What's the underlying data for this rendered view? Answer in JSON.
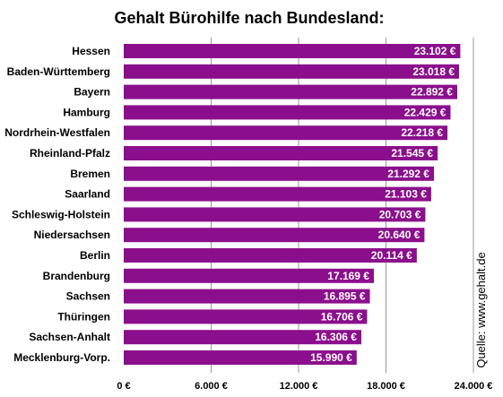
{
  "chart_data": {
    "type": "bar",
    "orientation": "horizontal",
    "title": "Gehalt Bürohilfe nach Bundesland:",
    "categories": [
      "Hessen",
      "Baden-Württemberg",
      "Bayern",
      "Hamburg",
      "Nordrhein-Westfalen",
      "Rheinland-Pfalz",
      "Bremen",
      "Saarland",
      "Schleswig-Holstein",
      "Niedersachsen",
      "Berlin",
      "Brandenburg",
      "Sachsen",
      "Thüringen",
      "Sachsen-Anhalt",
      "Mecklenburg-Vorp."
    ],
    "values": [
      23102,
      23018,
      22892,
      22429,
      22218,
      21545,
      21292,
      21103,
      20703,
      20640,
      20114,
      17169,
      16895,
      16706,
      16306,
      15990
    ],
    "value_labels": [
      "23.102 €",
      "23.018 €",
      "22.892 €",
      "22.429 €",
      "22.218 €",
      "21.545 €",
      "21.292 €",
      "21.103 €",
      "20.703 €",
      "20.640 €",
      "20.114 €",
      "17.169 €",
      "16.895 €",
      "16.706 €",
      "16.306 €",
      "15.990 €"
    ],
    "xlim": [
      0,
      24000
    ],
    "x_ticks": [
      0,
      6000,
      12000,
      18000,
      24000
    ],
    "x_tick_labels": [
      "0 €",
      "6.000 €",
      "12.000 €",
      "18.000 €",
      "24.000 €"
    ],
    "grid": true,
    "bar_color": "#8b0f8c",
    "source": "Quelle: www.gehalt.de"
  }
}
